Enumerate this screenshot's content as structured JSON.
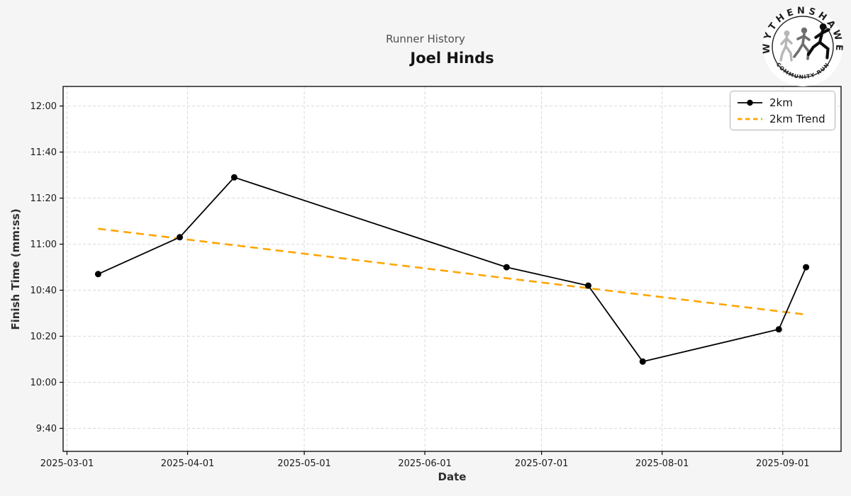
{
  "header": {
    "suptitle": "Runner History",
    "title": "Joel Hinds"
  },
  "logo": {
    "arc_text_top": "WYTHENSHAWE",
    "arc_text_bottom": "COMMUNITY RUN",
    "runner_colors": [
      "#b6b6b6",
      "#6e6e6e",
      "#0d0d0d"
    ]
  },
  "axis_labels": {
    "x": "Date",
    "y": "Finish Time (mm:ss)"
  },
  "legend": {
    "items": [
      "2km",
      "2km Trend"
    ]
  },
  "chart_data": {
    "type": "line",
    "title": "Joel Hinds",
    "subtitle": "Runner History",
    "xlabel": "Date",
    "ylabel": "Finish Time (mm:ss)",
    "x": [
      "2025-03-09",
      "2025-03-30",
      "2025-04-13",
      "2025-06-22",
      "2025-07-13",
      "2025-07-27",
      "2025-08-31",
      "2025-09-07"
    ],
    "series": [
      {
        "name": "2km",
        "color": "#000000",
        "line_style": "solid",
        "marker": "circle",
        "values_mmss": [
          "10:47",
          "11:03",
          "11:29",
          "10:50",
          "10:42",
          "10:09",
          "10:23",
          "10:50"
        ],
        "values_seconds": [
          647,
          663,
          689,
          650,
          642,
          609,
          623,
          650
        ]
      },
      {
        "name": "2km Trend",
        "color": "#FFA500",
        "line_style": "dashed",
        "derived": "linear_regression_of_2km",
        "approx_start_mmss": "11:07",
        "approx_end_mmss": "10:29"
      }
    ],
    "xticks": [
      "2025-03-01",
      "2025-04-01",
      "2025-05-01",
      "2025-06-01",
      "2025-07-01",
      "2025-08-01",
      "2025-09-01"
    ],
    "yticks": [
      "9:40",
      "10:00",
      "10:20",
      "10:40",
      "11:00",
      "11:20",
      "11:40",
      "12:00"
    ],
    "xlim": [
      "2025-02-28",
      "2025-09-16"
    ],
    "ylim_seconds": [
      570,
      728.5
    ],
    "grid": true,
    "gridline_color": "#d9d9d9",
    "figure_background": "#f5f5f5",
    "axes_background": "#ffffff",
    "legend_position": "upper right"
  }
}
